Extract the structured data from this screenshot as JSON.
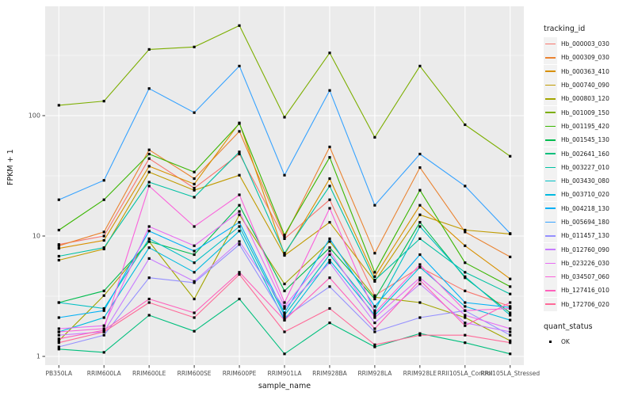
{
  "figure": {
    "background": "#ffffff",
    "panel_background": "#ebebeb",
    "grid_color": "#ffffff",
    "tick_label_color": "#4d4d4d",
    "axis_title_color": "#1a1a1a"
  },
  "legend": {
    "tracking_title": "tracking_id",
    "quant_title": "quant_status",
    "quant_entries": [
      {
        "label": "OK"
      }
    ]
  },
  "chart_data": {
    "type": "line",
    "title": "",
    "xlabel": "sample_name",
    "ylabel": "FPKM + 1",
    "y_scale": "log10",
    "y_ticks": [
      1,
      10,
      100
    ],
    "y_tick_labels": [
      "1",
      "10",
      "100"
    ],
    "y_minor_ticks": [
      3.162,
      31.623,
      316.228
    ],
    "ylim": [
      0.85,
      810
    ],
    "grid": true,
    "legend_position": "right",
    "point_shape": "square",
    "point_color": "#000000",
    "x_categories": [
      "PB350LA",
      "RRIM600LA",
      "RRIM600LE",
      "RRIM600SE",
      "RRIM600PE",
      "RRIM901LA",
      "RRIM928BA",
      "RRIM928LA",
      "RRIM928LE",
      "RRII105LA_Control",
      "RRII105LA_Stressed"
    ],
    "series": [
      {
        "name": "Hb_000003_030",
        "color": "#F8766D",
        "values": [
          8.5,
          10,
          44,
          25,
          48,
          9.5,
          20,
          3.2,
          5.5,
          3.5,
          2.6
        ]
      },
      {
        "name": "Hb_000309_030",
        "color": "#EA8331",
        "values": [
          8.3,
          10.8,
          52,
          30,
          74,
          9.8,
          55,
          7.2,
          37,
          10.8,
          6.7
        ]
      },
      {
        "name": "Hb_000363_410",
        "color": "#D89000",
        "values": [
          7.9,
          9.2,
          38,
          27,
          87,
          7.0,
          30,
          4.6,
          18,
          8.3,
          4.4
        ]
      },
      {
        "name": "Hb_000740_090",
        "color": "#C09B00",
        "values": [
          6.3,
          7.8,
          34,
          24,
          32,
          6.9,
          13,
          4.2,
          15,
          11.2,
          10.4
        ]
      },
      {
        "name": "Hb_000803_120",
        "color": "#A3A500",
        "values": [
          1.35,
          3.2,
          9.0,
          3.0,
          15,
          4.0,
          9.0,
          3.1,
          2.8,
          2.1,
          1.35
        ]
      },
      {
        "name": "Hb_001009_150",
        "color": "#7CAE00",
        "values": [
          122,
          132,
          355,
          372,
          560,
          97,
          332,
          66,
          258,
          84,
          46
        ]
      },
      {
        "name": "Hb_001195_420",
        "color": "#39B600",
        "values": [
          11.2,
          20,
          48,
          34,
          86,
          10.2,
          45,
          5.0,
          24,
          6.0,
          3.8
        ]
      },
      {
        "name": "Hb_001545_130",
        "color": "#00BB4E",
        "values": [
          2.8,
          3.5,
          9.0,
          7.0,
          18,
          3.5,
          8.0,
          3.0,
          13,
          4.5,
          2.3
        ]
      },
      {
        "name": "Hb_002641_160",
        "color": "#00BF7D",
        "values": [
          1.15,
          1.08,
          2.2,
          1.62,
          3.0,
          1.05,
          1.9,
          1.2,
          1.55,
          1.3,
          1.05
        ]
      },
      {
        "name": "Hb_003227_010",
        "color": "#00C1A3",
        "values": [
          6.8,
          8.0,
          28,
          21,
          50,
          7.2,
          26,
          4.3,
          9.5,
          5.0,
          3.3
        ]
      },
      {
        "name": "Hb_003430_080",
        "color": "#00BFC4",
        "values": [
          2.8,
          2.5,
          9.5,
          6.0,
          12,
          2.2,
          7.0,
          2.4,
          12,
          4.6,
          2.2
        ]
      },
      {
        "name": "Hb_003710_020",
        "color": "#00BAE0",
        "values": [
          1.6,
          2.1,
          8.0,
          5.0,
          11,
          2.0,
          6.3,
          2.2,
          5.5,
          2.6,
          2.0
        ]
      },
      {
        "name": "Hb_004218_130",
        "color": "#00B0F6",
        "values": [
          2.1,
          2.4,
          11,
          7.5,
          13,
          2.3,
          9.5,
          2.6,
          7.0,
          2.8,
          2.55
        ]
      },
      {
        "name": "Hb_005694_180",
        "color": "#35A2FF",
        "values": [
          20,
          29,
          168,
          106,
          258,
          32,
          162,
          18,
          48,
          26,
          10.5
        ]
      },
      {
        "name": "Hb_011457_130",
        "color": "#9590FF",
        "values": [
          1.2,
          1.5,
          4.5,
          4.1,
          8.5,
          2.1,
          3.8,
          1.6,
          2.1,
          2.4,
          1.5
        ]
      },
      {
        "name": "Hb_012760_090",
        "color": "#C77CFF",
        "values": [
          1.5,
          1.6,
          6.5,
          4.2,
          9.0,
          2.5,
          6.0,
          1.9,
          4.0,
          1.9,
          1.6
        ]
      },
      {
        "name": "Hb_023226_030",
        "color": "#E76BF3",
        "values": [
          1.7,
          1.8,
          12,
          8.3,
          16,
          2.6,
          7.5,
          2.1,
          4.5,
          2.2,
          1.7
        ]
      },
      {
        "name": "Hb_034507_060",
        "color": "#FA62DB",
        "values": [
          1.6,
          1.7,
          26,
          12,
          22,
          2.8,
          17,
          2.3,
          5.8,
          2.4,
          2.5
        ]
      },
      {
        "name": "Hb_127416_010",
        "color": "#FF62BC",
        "values": [
          1.4,
          1.65,
          3.0,
          2.3,
          5.0,
          2.0,
          4.5,
          1.7,
          4.3,
          1.8,
          2.8
        ]
      },
      {
        "name": "Hb_172706_020",
        "color": "#FF6A98",
        "values": [
          1.3,
          1.6,
          2.8,
          2.1,
          4.8,
          1.6,
          2.5,
          1.25,
          1.5,
          1.5,
          1.3
        ]
      }
    ]
  }
}
